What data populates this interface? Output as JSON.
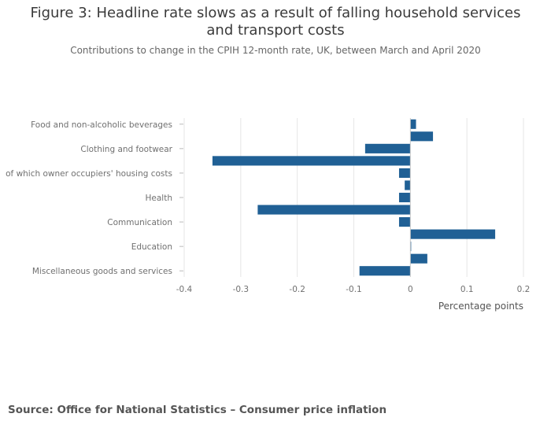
{
  "header": {
    "title": "Figure 3: Headline rate slows as a result of falling household services and transport costs",
    "subtitle": "Contributions to change in the CPIH 12-month rate, UK, between March and April 2020"
  },
  "footer": {
    "source": "Source: Office for National Statistics – Consumer price inflation"
  },
  "colors": {
    "bar": "#206095",
    "grid": "#e6e6e6",
    "zero_line": "#c8c8c8",
    "tick_text": "#707070"
  },
  "chart_data": {
    "type": "bar",
    "orientation": "horizontal",
    "title": "Figure 3: Headline rate slows as a result of falling household services and transport costs",
    "subtitle": "Contributions to change in the CPIH 12-month rate, UK, between March and April 2020",
    "xlabel": "Percentage points",
    "ylabel": "",
    "xlim": [
      -0.4,
      0.2
    ],
    "x_ticks": [
      -0.4,
      -0.3,
      -0.2,
      -0.1,
      0,
      0.1,
      0.2
    ],
    "x_tick_labels": [
      "-0.4",
      "-0.3",
      "-0.2",
      "-0.1",
      "0",
      "0.1",
      "0.2"
    ],
    "y_tick_labels": [
      "Food and non-alcoholic beverages",
      "Clothing and footwear",
      "of which owner occupiers' housing costs",
      "Health",
      "Communication",
      "Education",
      "Miscellaneous goods and services"
    ],
    "y_tick_positions": [
      0,
      2,
      4,
      6,
      8,
      10,
      12
    ],
    "bars": [
      {
        "index": 0,
        "value": 0.01
      },
      {
        "index": 1,
        "value": 0.04
      },
      {
        "index": 2,
        "value": -0.08
      },
      {
        "index": 3,
        "value": -0.35
      },
      {
        "index": 4,
        "value": -0.02
      },
      {
        "index": 5,
        "value": -0.01
      },
      {
        "index": 6,
        "value": -0.02
      },
      {
        "index": 7,
        "value": -0.27
      },
      {
        "index": 8,
        "value": -0.02
      },
      {
        "index": 9,
        "value": 0.15
      },
      {
        "index": 10,
        "value": 0.0
      },
      {
        "index": 11,
        "value": 0.03
      },
      {
        "index": 12,
        "value": -0.09
      }
    ],
    "grid": true
  }
}
